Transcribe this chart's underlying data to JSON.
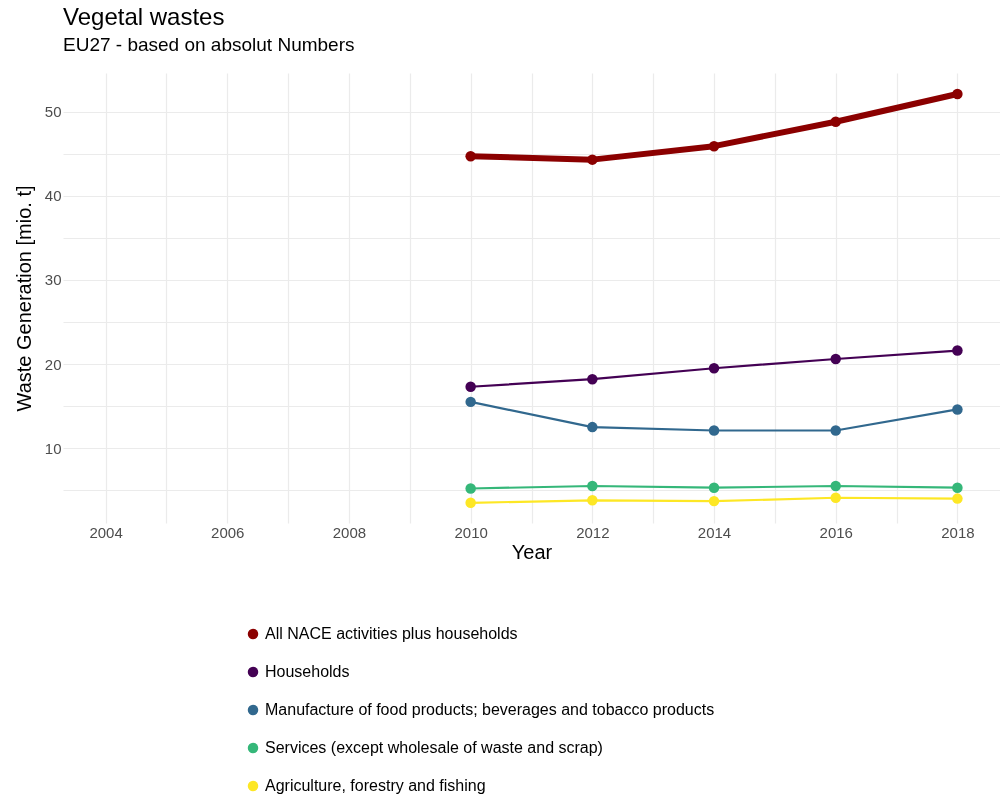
{
  "chart_data": {
    "type": "line",
    "title": "Vegetal wastes",
    "subtitle": "EU27 - based on absolut Numbers",
    "xlabel": "Year",
    "ylabel": "Waste Generation [mio. t]",
    "x": [
      2010,
      2012,
      2014,
      2016,
      2018
    ],
    "series": [
      {
        "name": "All NACE activities plus households",
        "color": "#8b0000",
        "values": [
          44.7,
          44.3,
          45.9,
          48.8,
          52.1
        ]
      },
      {
        "name": "Households",
        "color": "#440154",
        "values": [
          17.3,
          18.2,
          19.5,
          20.6,
          21.6
        ]
      },
      {
        "name": "Manufacture of food products; beverages and tobacco products",
        "color": "#31688e",
        "values": [
          15.5,
          12.5,
          12.1,
          12.1,
          14.6
        ]
      },
      {
        "name": "Services (except wholesale of waste and scrap)",
        "color": "#35b779",
        "values": [
          5.2,
          5.5,
          5.3,
          5.5,
          5.3
        ]
      },
      {
        "name": "Agriculture, forestry and fishing",
        "color": "#fde725",
        "values": [
          3.5,
          3.8,
          3.7,
          4.1,
          4.0
        ]
      }
    ],
    "xlim": [
      2003.3,
      2018.7
    ],
    "xticks": [
      2004,
      {
        "value": 2005,
        "label": null
      },
      2006,
      {
        "value": 2007,
        "label": null
      },
      2008,
      {
        "value": 2009,
        "label": null
      },
      2010,
      {
        "value": 2011,
        "label": null
      },
      2012,
      {
        "value": 2013,
        "label": null
      },
      2014,
      {
        "value": 2015,
        "label": null
      },
      2016,
      {
        "value": 2017,
        "label": null
      },
      2018
    ],
    "ylim": [
      1.1,
      54.6
    ],
    "yticks": [
      {
        "value": 5,
        "label": null
      },
      10,
      {
        "value": 15,
        "label": null
      },
      20,
      {
        "value": 25,
        "label": null
      },
      30,
      {
        "value": 35,
        "label": null
      },
      40,
      {
        "value": 45,
        "label": null
      },
      50
    ],
    "grid": true,
    "legend": "bottom",
    "marker": "circle",
    "line_style": "solid"
  }
}
